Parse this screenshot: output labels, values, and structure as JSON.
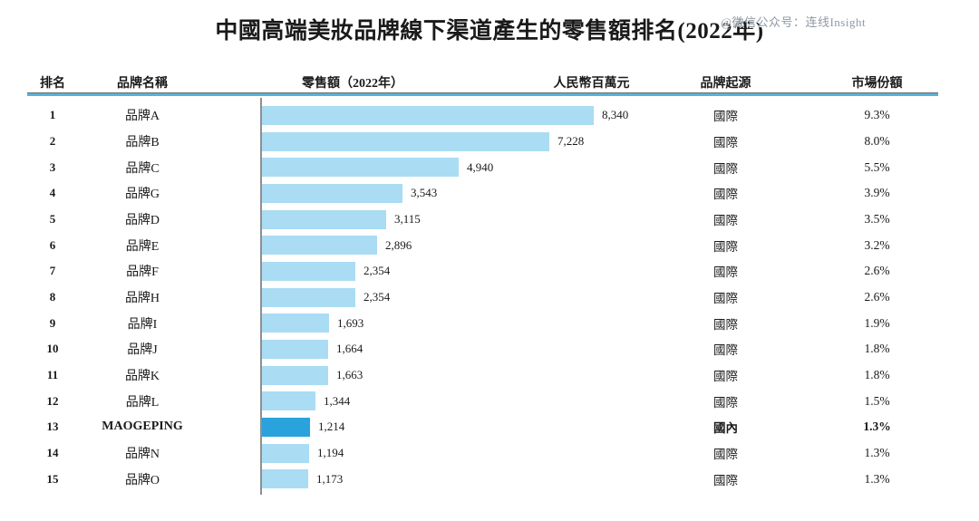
{
  "title": "中國高端美妝品牌線下渠道產生的零售額排名(2022年)",
  "watermark": "@微信公众号：连线Insight",
  "columns": {
    "rank": "排名",
    "brand": "品牌名稱",
    "retail": "零售額（2022年）",
    "unit": "人民幣百萬元",
    "origin": "品牌起源",
    "share": "市場份額"
  },
  "colors": {
    "bar": "#aadcf3",
    "bar_highlight": "#2aa2dc",
    "header_rule_blue": "#56b2da",
    "header_rule_dark": "#6a7073",
    "axis": "#8f8f8f",
    "watermark_text": "#8e99a4"
  },
  "chart_data": {
    "type": "bar",
    "orientation": "horizontal",
    "title": "中國高端美妝品牌線下渠道產生的零售額排名(2022年)",
    "value_unit_label": "人民幣百萬元",
    "xlim": [
      0,
      8340
    ],
    "grid": false,
    "legend": "none",
    "categories": [
      "品牌A",
      "品牌B",
      "品牌C",
      "品牌G",
      "品牌D",
      "品牌E",
      "品牌F",
      "品牌H",
      "品牌I",
      "品牌J",
      "品牌K",
      "品牌L",
      "MAOGEPING",
      "品牌N",
      "品牌O"
    ],
    "values": [
      8340,
      7228,
      4940,
      3543,
      3115,
      2896,
      2354,
      2354,
      1693,
      1664,
      1663,
      1344,
      1214,
      1194,
      1173
    ],
    "rows": [
      {
        "rank": "1",
        "brand": "品牌A",
        "value": 8340,
        "value_label": "8,340",
        "origin": "國際",
        "share": "9.3%",
        "highlight": false
      },
      {
        "rank": "2",
        "brand": "品牌B",
        "value": 7228,
        "value_label": "7,228",
        "origin": "國際",
        "share": "8.0%",
        "highlight": false
      },
      {
        "rank": "3",
        "brand": "品牌C",
        "value": 4940,
        "value_label": "4,940",
        "origin": "國際",
        "share": "5.5%",
        "highlight": false
      },
      {
        "rank": "4",
        "brand": "品牌G",
        "value": 3543,
        "value_label": "3,543",
        "origin": "國際",
        "share": "3.9%",
        "highlight": false
      },
      {
        "rank": "5",
        "brand": "品牌D",
        "value": 3115,
        "value_label": "3,115",
        "origin": "國際",
        "share": "3.5%",
        "highlight": false
      },
      {
        "rank": "6",
        "brand": "品牌E",
        "value": 2896,
        "value_label": "2,896",
        "origin": "國際",
        "share": "3.2%",
        "highlight": false
      },
      {
        "rank": "7",
        "brand": "品牌F",
        "value": 2354,
        "value_label": "2,354",
        "origin": "國際",
        "share": "2.6%",
        "highlight": false
      },
      {
        "rank": "8",
        "brand": "品牌H",
        "value": 2354,
        "value_label": "2,354",
        "origin": "國際",
        "share": "2.6%",
        "highlight": false
      },
      {
        "rank": "9",
        "brand": "品牌I",
        "value": 1693,
        "value_label": "1,693",
        "origin": "國際",
        "share": "1.9%",
        "highlight": false
      },
      {
        "rank": "10",
        "brand": "品牌J",
        "value": 1664,
        "value_label": "1,664",
        "origin": "國際",
        "share": "1.8%",
        "highlight": false
      },
      {
        "rank": "11",
        "brand": "品牌K",
        "value": 1663,
        "value_label": "1,663",
        "origin": "國際",
        "share": "1.8%",
        "highlight": false
      },
      {
        "rank": "12",
        "brand": "品牌L",
        "value": 1344,
        "value_label": "1,344",
        "origin": "國際",
        "share": "1.5%",
        "highlight": false
      },
      {
        "rank": "13",
        "brand": "MAOGEPING",
        "value": 1214,
        "value_label": "1,214",
        "origin": "國內",
        "share": "1.3%",
        "highlight": true
      },
      {
        "rank": "14",
        "brand": "品牌N",
        "value": 1194,
        "value_label": "1,194",
        "origin": "國際",
        "share": "1.3%",
        "highlight": false
      },
      {
        "rank": "15",
        "brand": "品牌O",
        "value": 1173,
        "value_label": "1,173",
        "origin": "國際",
        "share": "1.3%",
        "highlight": false
      }
    ]
  }
}
